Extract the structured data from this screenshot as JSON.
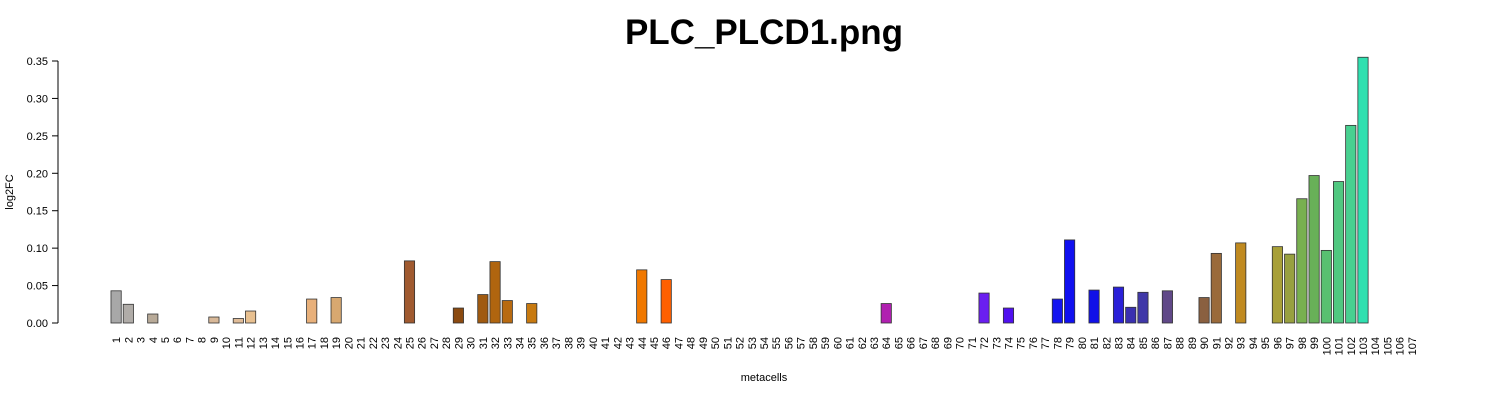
{
  "chart_data": {
    "type": "bar",
    "title": "PLC_PLCD1.png",
    "xlabel": "metacells",
    "ylabel": "log2FC",
    "categories": [
      "1",
      "2",
      "3",
      "4",
      "5",
      "6",
      "7",
      "8",
      "9",
      "10",
      "11",
      "12",
      "13",
      "14",
      "15",
      "16",
      "17",
      "18",
      "19",
      "20",
      "21",
      "22",
      "23",
      "24",
      "25",
      "26",
      "27",
      "28",
      "29",
      "30",
      "31",
      "32",
      "33",
      "34",
      "35",
      "36",
      "37",
      "38",
      "39",
      "40",
      "41",
      "42",
      "43",
      "44",
      "45",
      "46",
      "47",
      "48",
      "49",
      "50",
      "51",
      "52",
      "53",
      "54",
      "55",
      "56",
      "57",
      "58",
      "59",
      "60",
      "61",
      "62",
      "63",
      "64",
      "65",
      "66",
      "67",
      "68",
      "69",
      "70",
      "71",
      "72",
      "73",
      "74",
      "75",
      "76",
      "77",
      "78",
      "79",
      "80",
      "81",
      "82",
      "83",
      "84",
      "85",
      "86",
      "87",
      "88",
      "89",
      "90",
      "91",
      "92",
      "93",
      "94",
      "95",
      "96",
      "97",
      "98",
      "99",
      "100",
      "101",
      "102",
      "103",
      "104",
      "105",
      "106",
      "107"
    ],
    "values": [
      0.043,
      0.025,
      0,
      0.012,
      0,
      0,
      0,
      0,
      0.008,
      0,
      0.006,
      0.016,
      0,
      0,
      0,
      0,
      0.032,
      0,
      0.034,
      0,
      0,
      0,
      0,
      0,
      0.083,
      0,
      0,
      0,
      0.02,
      0,
      0.038,
      0.082,
      0.03,
      0,
      0.026,
      0,
      0,
      0,
      0,
      0,
      0,
      0,
      0,
      0.071,
      0,
      0.058,
      0,
      0,
      0,
      0,
      0,
      0,
      0,
      0,
      0,
      0,
      0,
      0,
      0,
      0,
      0,
      0,
      0,
      0.026,
      0,
      0,
      0,
      0,
      0,
      0,
      0,
      0.04,
      0,
      0.02,
      0,
      0,
      0,
      0.032,
      0.111,
      0,
      0.044,
      0,
      0.048,
      0.021,
      0.041,
      0,
      0.043,
      0,
      0,
      0.034,
      0.093,
      0,
      0.107,
      0,
      0,
      0.102,
      0.092,
      0.166,
      0.197,
      0.097,
      0.189,
      0.264,
      0.355,
      0,
      0,
      0,
      0
    ],
    "colors": [
      "#a8a8a8",
      "#b0aca8",
      "#b0aca8",
      "#b8aa98",
      "#c8b498",
      "#c8b498",
      "#c8b498",
      "#c8b498",
      "#d8b898",
      "#d8b898",
      "#e0bc98",
      "#e8c090",
      "#e8b880",
      "#e8b880",
      "#e8b880",
      "#e8b880",
      "#e8b07a",
      "#e0b080",
      "#d8a870",
      "#b07040",
      "#b07040",
      "#b07040",
      "#b07040",
      "#b07040",
      "#a05a30",
      "#8a5020",
      "#8a5020",
      "#8a5020",
      "#8b4a10",
      "#904c10",
      "#a05a10",
      "#b0650f",
      "#b86a10",
      "#c07010",
      "#c87a10",
      "#e07800",
      "#e07800",
      "#e07800",
      "#e07800",
      "#e07800",
      "#e07800",
      "#e07800",
      "#e07800",
      "#f07800",
      "#f86a00",
      "#ff6000",
      "#c03090",
      "#c03090",
      "#c03090",
      "#c03090",
      "#c03090",
      "#c03090",
      "#c03090",
      "#c03090",
      "#c03090",
      "#c03090",
      "#c03090",
      "#c03090",
      "#c03090",
      "#c03090",
      "#c03090",
      "#c03090",
      "#c03090",
      "#b020b0",
      "#8020e0",
      "#8020e0",
      "#8020e0",
      "#8020e0",
      "#8020e0",
      "#8020e0",
      "#8020e0",
      "#6a1ef0",
      "#5a14f0",
      "#5010f0",
      "#2010f0",
      "#2010f0",
      "#2010f0",
      "#1414f0",
      "#1010f0",
      "#1010e8",
      "#1010e8",
      "#2020e0",
      "#2a20d8",
      "#3a30b0",
      "#4038a8",
      "#503a98",
      "#604888",
      "#705a60",
      "#705a60",
      "#8a6040",
      "#9a6a3a",
      "#b07a28",
      "#c08a20",
      "#b09a30",
      "#b09a30",
      "#a8a038",
      "#98a040",
      "#78b050",
      "#68b058",
      "#58c070",
      "#50c880",
      "#48d090",
      "#30e0b0",
      "#30e0b0",
      "#30e0b0",
      "#30e0b0",
      "#30e0b0"
    ],
    "ylim": [
      0,
      0.35
    ],
    "yticks": [
      {
        "value": 0,
        "label": "0.00"
      },
      {
        "value": 0.05,
        "label": "0.05"
      },
      {
        "value": 0.1,
        "label": "0.10"
      },
      {
        "value": 0.15,
        "label": "0.15"
      },
      {
        "value": 0.2,
        "label": "0.20"
      },
      {
        "value": 0.25,
        "label": "0.25"
      },
      {
        "value": 0.3,
        "label": "0.30"
      },
      {
        "value": 0.35,
        "label": "0.35"
      }
    ]
  }
}
